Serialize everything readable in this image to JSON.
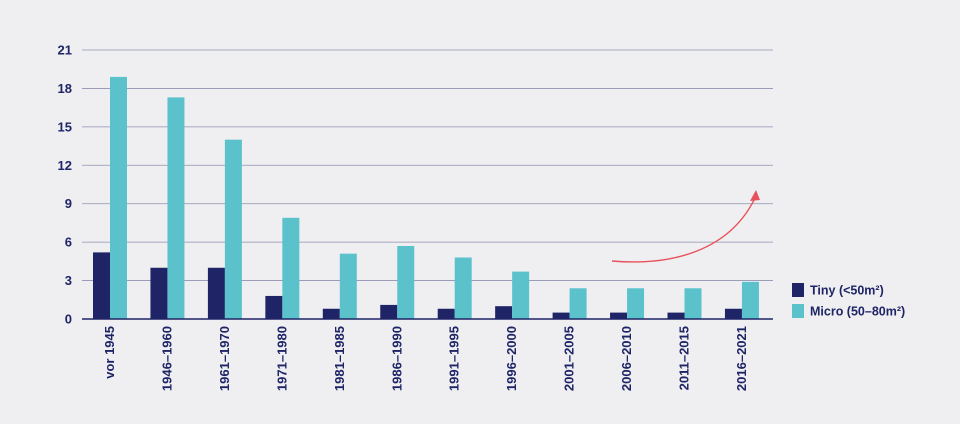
{
  "chart_data": {
    "type": "bar",
    "categories": [
      "vor 1945",
      "1946–1960",
      "1961–1970",
      "1971–1980",
      "1981–1985",
      "1986–1990",
      "1991–1995",
      "1996–2000",
      "2001–2005",
      "2006–2010",
      "2011–2015",
      "2016–2021"
    ],
    "series": [
      {
        "name": "Tiny (<50m²)",
        "color": "#1e2466",
        "values": [
          5.2,
          4.0,
          4.0,
          1.8,
          0.8,
          1.1,
          0.8,
          1.0,
          0.5,
          0.5,
          0.5,
          0.8
        ]
      },
      {
        "name": "Micro (50–80m²)",
        "color": "#5bc2cc",
        "values": [
          18.9,
          17.3,
          14.0,
          7.9,
          5.1,
          5.7,
          4.8,
          3.7,
          2.4,
          2.4,
          2.4,
          2.9
        ]
      }
    ],
    "yticks": [
      0,
      3,
      6,
      9,
      12,
      15,
      18,
      21
    ],
    "ylim": [
      0,
      21
    ],
    "title": "",
    "xlabel": "",
    "ylabel": "",
    "grid": true,
    "legend_position": "right",
    "annotation": {
      "type": "arrow",
      "color": "#e8505b",
      "description": "upward trend arrow over recent periods"
    }
  }
}
